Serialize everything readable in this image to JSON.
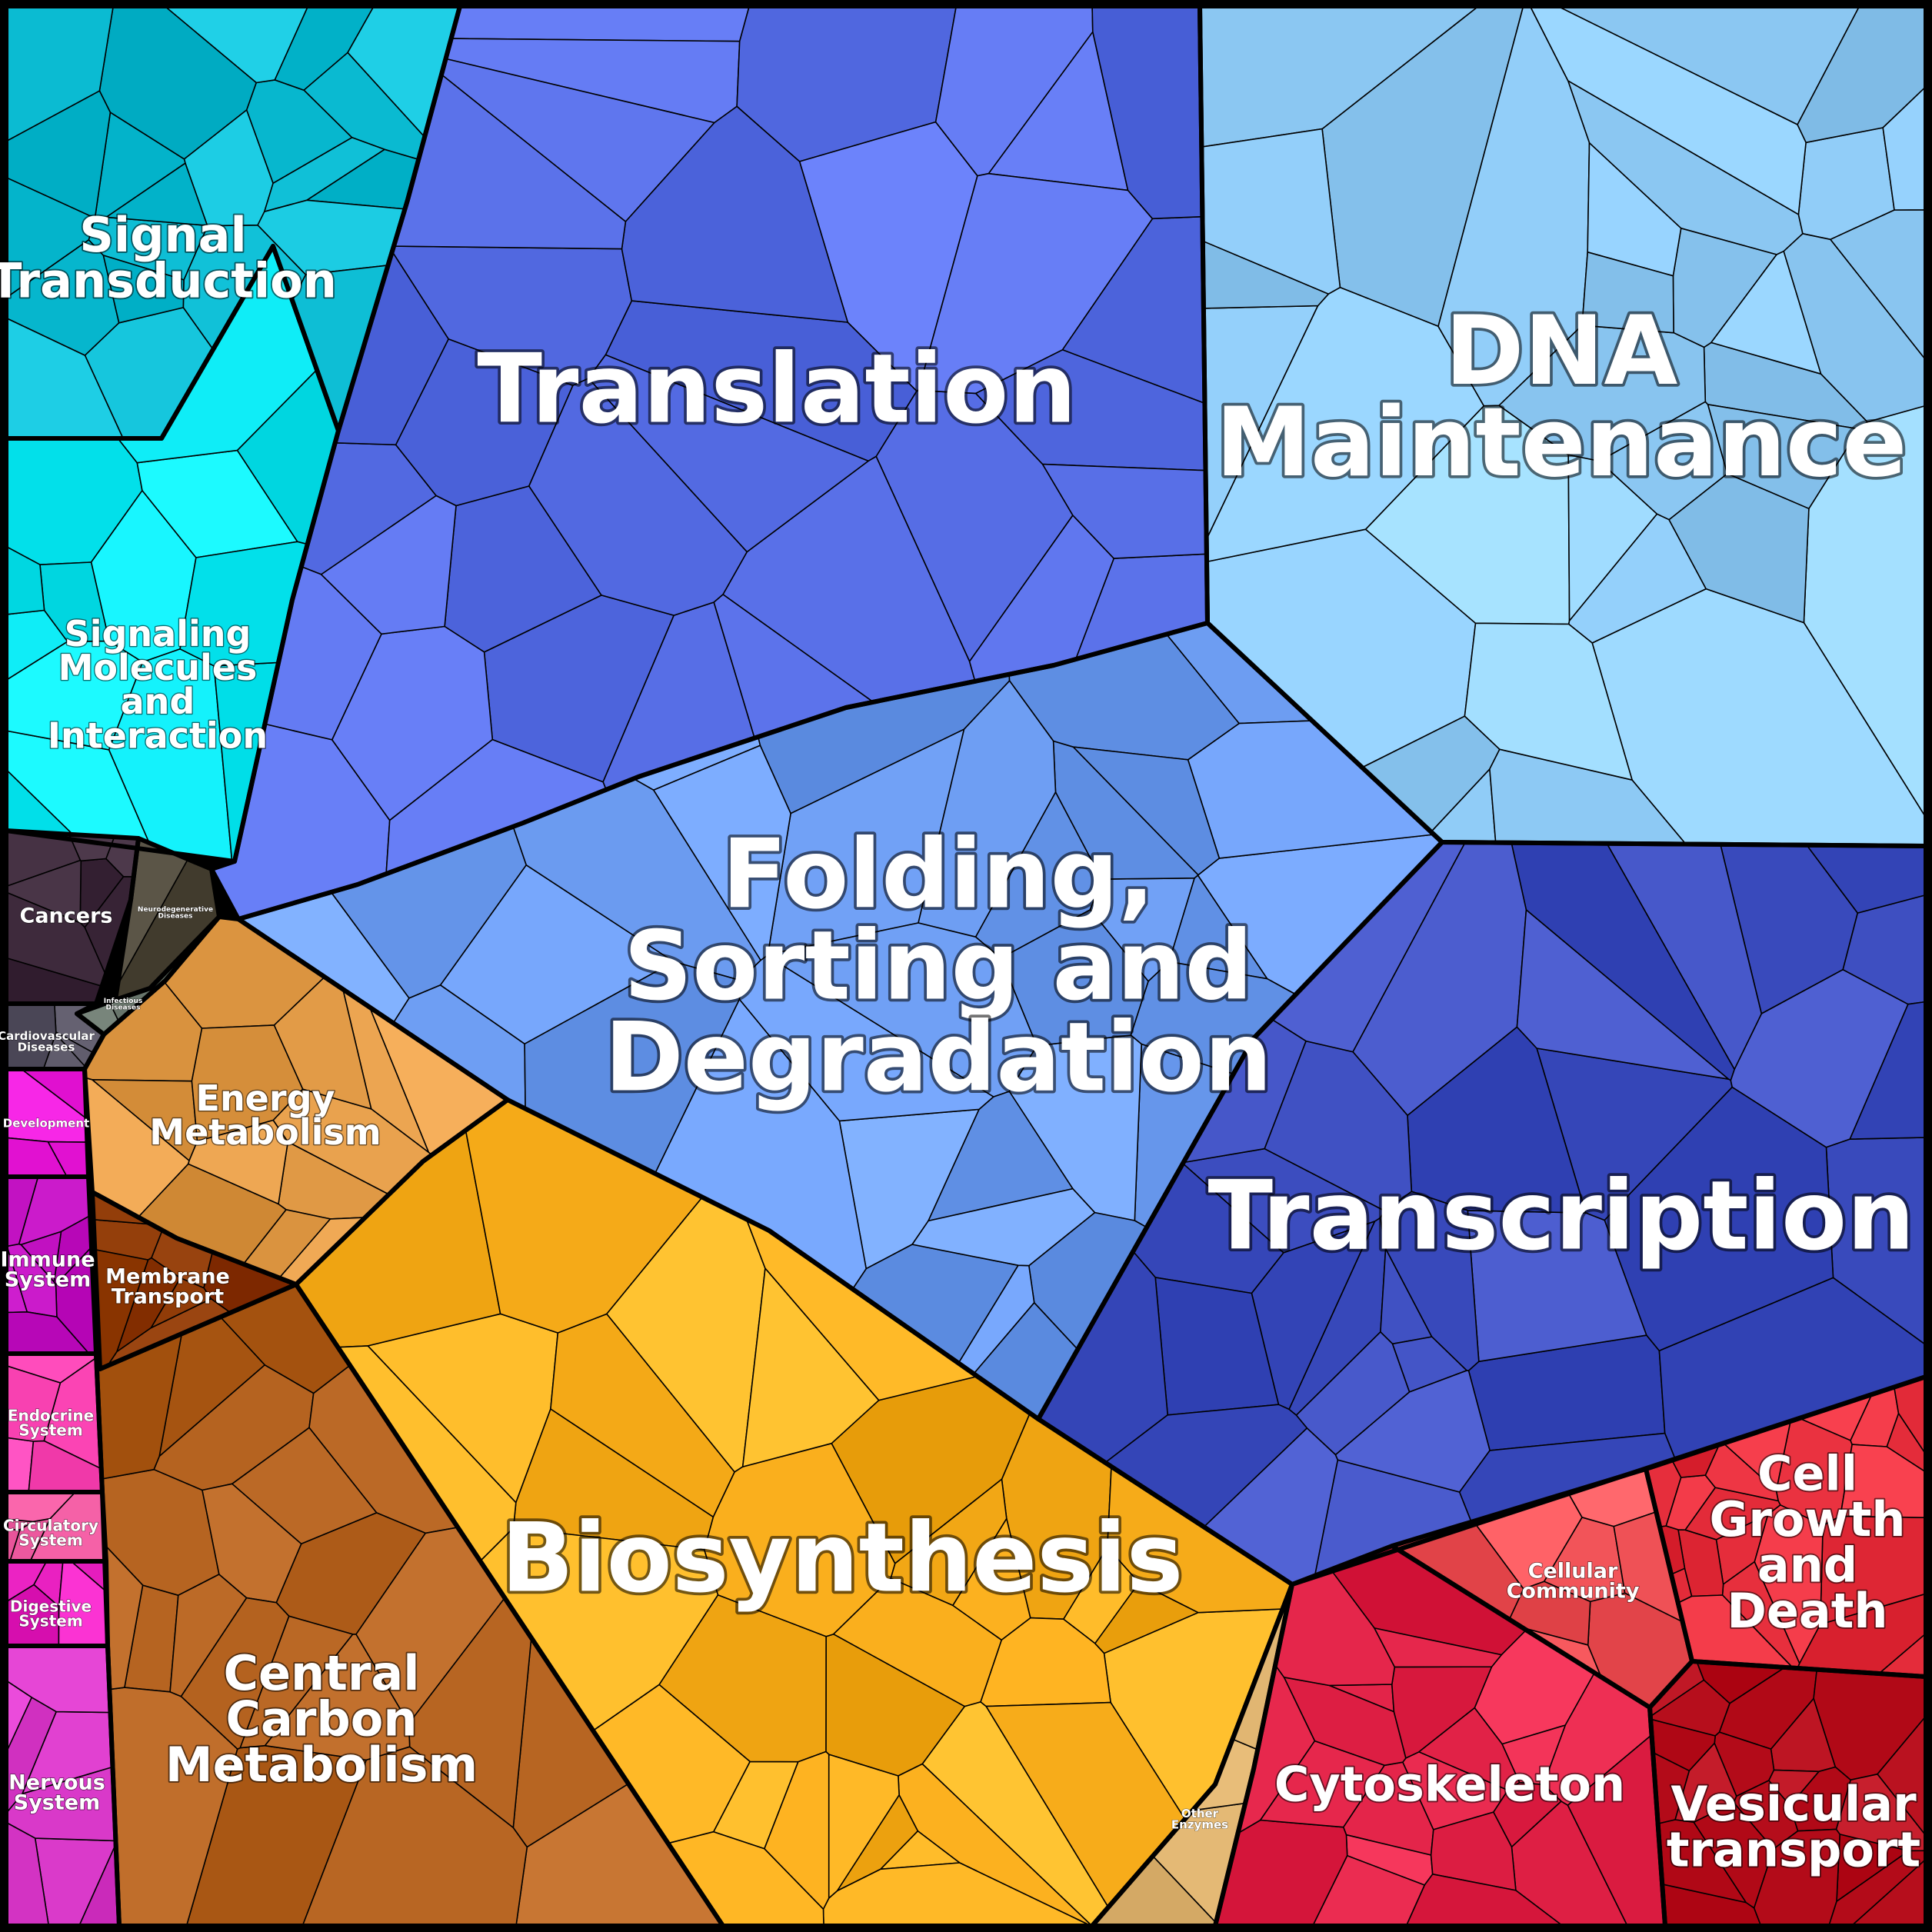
{
  "regions": [
    {
      "id": "signal-transduction",
      "lines": [
        "Signal",
        "Transduction"
      ],
      "color": "#0fbfd6",
      "tier": 2
    },
    {
      "id": "signaling-molecules",
      "lines": [
        "Signaling",
        "Molecules",
        "and",
        "Interaction"
      ],
      "color": "#08e6f0",
      "tier": 3
    },
    {
      "id": "translation",
      "lines": [
        "Translation"
      ],
      "color": "#5b72ea",
      "tier": 1
    },
    {
      "id": "dna-maintenance",
      "lines": [
        "DNA",
        "Maintenance"
      ],
      "color": "#93cffa",
      "tier": 1
    },
    {
      "id": "folding-sorting",
      "lines": [
        "Folding,",
        "Sorting and",
        "Degradation"
      ],
      "color": "#6e9ef3",
      "tier": 1
    },
    {
      "id": "transcription",
      "lines": [
        "Transcription"
      ],
      "color": "#3f50c2",
      "tier": 1
    },
    {
      "id": "cancers",
      "lines": [
        "Cancers"
      ],
      "color": "#3a2638",
      "tier": 4
    },
    {
      "id": "neurodegenerative",
      "lines": [
        "Neurodegenerative",
        "Diseases"
      ],
      "color": "#4a4436",
      "tier": 7
    },
    {
      "id": "infectious",
      "lines": [
        "Infectious",
        "Diseases"
      ],
      "color": "#77847a",
      "tier": 7
    },
    {
      "id": "cardiovascular",
      "lines": [
        "Cardiovascular",
        "Diseases"
      ],
      "color": "#5c5868",
      "tier": 6
    },
    {
      "id": "development",
      "lines": [
        "Development"
      ],
      "color": "#f020e0",
      "tier": 6
    },
    {
      "id": "immune-system",
      "lines": [
        "Immune",
        "System"
      ],
      "color": "#c010c0",
      "tier": 4
    },
    {
      "id": "endocrine-system",
      "lines": [
        "Endocrine",
        "System"
      ],
      "color": "#ff48b8",
      "tier": 5
    },
    {
      "id": "circulatory-system",
      "lines": [
        "Circulatory",
        "System"
      ],
      "color": "#ee5aa0",
      "tier": 5
    },
    {
      "id": "digestive-system",
      "lines": [
        "Digestive",
        "System"
      ],
      "color": "#e820c0",
      "tier": 5
    },
    {
      "id": "nervous-system",
      "lines": [
        "Nervous",
        "System"
      ],
      "color": "#d838c8",
      "tier": 4
    },
    {
      "id": "energy-metabolism",
      "lines": [
        "Energy",
        "Metabolism"
      ],
      "color": "#e29b47",
      "tier": 3
    },
    {
      "id": "membrane-transport",
      "lines": [
        "Membrane",
        "Transport"
      ],
      "color": "#8f3a06",
      "tier": 4
    },
    {
      "id": "central-carbon",
      "lines": [
        "Central",
        "Carbon",
        "Metabolism"
      ],
      "color": "#b4621f",
      "tier": 2
    },
    {
      "id": "biosynthesis",
      "lines": [
        "Biosynthesis"
      ],
      "color": "#fbb01e",
      "tier": 1
    },
    {
      "id": "other-enzymes",
      "lines": [
        "Other",
        "Enzymes"
      ],
      "color": "#d9ae6a",
      "tier": 6
    },
    {
      "id": "cytoskeleton",
      "lines": [
        "Cytoskeleton"
      ],
      "color": "#e4254a",
      "tier": 2
    },
    {
      "id": "cellular-community",
      "lines": [
        "Cellular",
        "Community"
      ],
      "color": "#f3555a",
      "tier": 4
    },
    {
      "id": "cell-growth",
      "lines": [
        "Cell",
        "Growth",
        "and",
        "Death"
      ],
      "color": "#e8303e",
      "tier": 2
    },
    {
      "id": "vesicular-transport",
      "lines": [
        "Vesicular",
        "transport"
      ],
      "color": "#b8101e",
      "tier": 2
    }
  ]
}
